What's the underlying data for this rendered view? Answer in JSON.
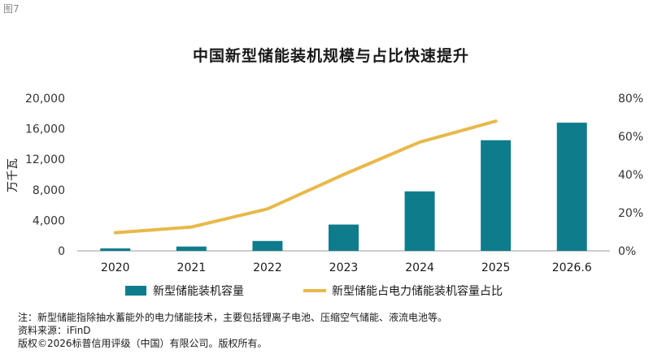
{
  "figure_label": "图7",
  "chart_data": {
    "type": "bar",
    "title": "中国新型储能装机规模与占比快速提升",
    "categories": [
      "2020",
      "2021",
      "2022",
      "2023",
      "2024",
      "2025",
      "2026.6"
    ],
    "ylabel": "万千瓦",
    "ylim": [
      0,
      20000
    ],
    "yticks": [
      "0",
      "4,000",
      "8,000",
      "12,000",
      "16,000",
      "20,000"
    ],
    "y2lim": [
      0,
      80
    ],
    "y2ticks": [
      "0%",
      "20%",
      "40%",
      "60%",
      "80%"
    ],
    "legend_position": "bottom",
    "series": [
      {
        "name": "新型储能装机容量",
        "type": "bar",
        "axis": "left",
        "color": "#0f7c8c",
        "values": [
          330,
          570,
          1300,
          3450,
          7800,
          14500,
          16800
        ]
      },
      {
        "name": "新型储能占电力储能装机容量占比",
        "type": "line",
        "axis": "right",
        "color": "#e8b94a",
        "values": [
          9.5,
          12.5,
          22,
          40,
          57,
          68,
          null
        ]
      }
    ]
  },
  "footnotes": {
    "note": "注：新型储能指除抽水蓄能外的电力储能技术，主要包括锂离子电池、压缩空气储能、液流电池等。",
    "source": "资料来源：iFinD",
    "copyright": "版权©2026标普信用评级（中国）有限公司。版权所有。"
  }
}
